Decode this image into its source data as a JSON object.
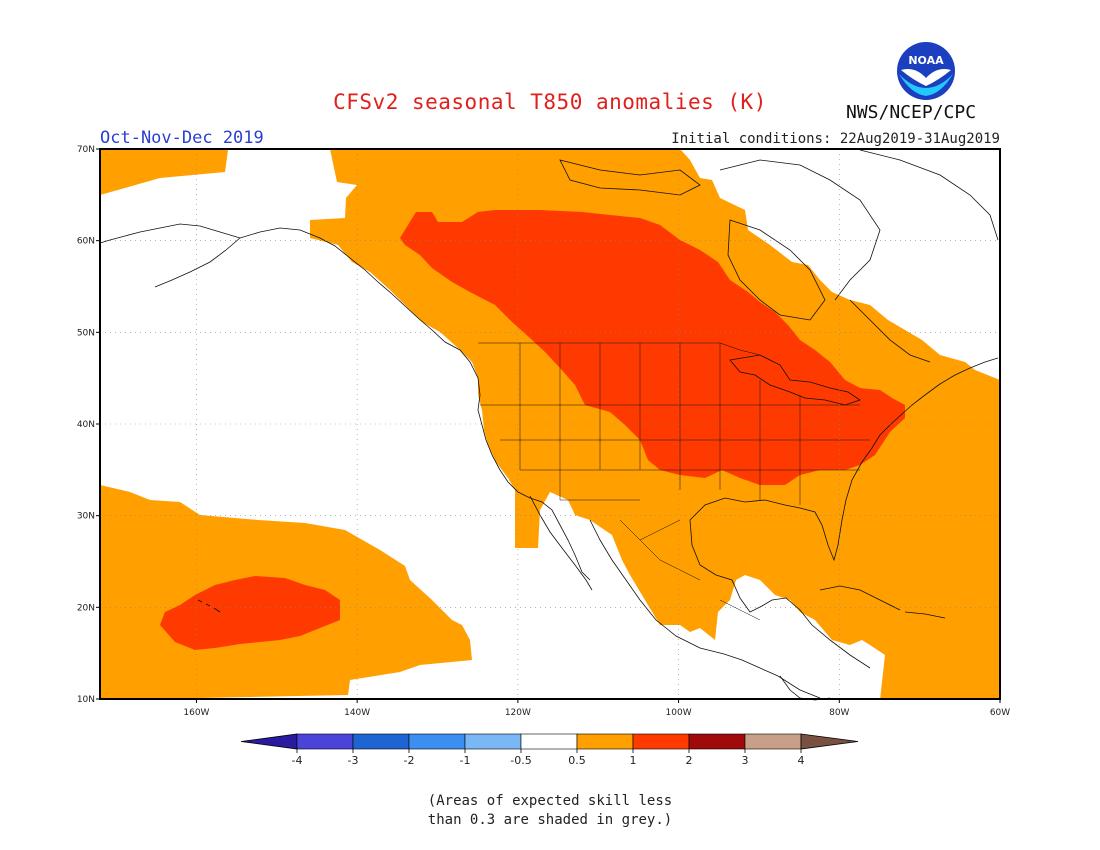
{
  "header": {
    "title": "CFSv2 seasonal T850 anomalies (K)",
    "period": "Oct-Nov-Dec 2019",
    "initial_conditions": "Initial conditions: 22Aug2019-31Aug2019",
    "agency": "NWS/NCEP/CPC",
    "logo_text": "NOAA"
  },
  "map": {
    "lon_range": [
      -172,
      -60
    ],
    "lat_range": [
      10,
      70
    ],
    "lon_ticks": [
      {
        "value": -160,
        "label": "160W"
      },
      {
        "value": -140,
        "label": "140W"
      },
      {
        "value": -120,
        "label": "120W"
      },
      {
        "value": -100,
        "label": "100W"
      },
      {
        "value": -80,
        "label": "80W"
      },
      {
        "value": -60,
        "label": "60W"
      }
    ],
    "lat_ticks": [
      {
        "value": 10,
        "label": "10N"
      },
      {
        "value": 20,
        "label": "20N"
      },
      {
        "value": 30,
        "label": "30N"
      },
      {
        "value": 40,
        "label": "40N"
      },
      {
        "value": 50,
        "label": "50N"
      },
      {
        "value": 60,
        "label": "60N"
      },
      {
        "value": 70,
        "label": "70N"
      }
    ],
    "colors": {
      "anomaly_0_5_to_1": "#ff9f00",
      "anomaly_1_to_2": "#ff3a00",
      "land_outline": "#111111",
      "grid": "#888888"
    }
  },
  "colorbar": {
    "labels": [
      "-4",
      "-3",
      "-2",
      "-1",
      "-0.5",
      "0.5",
      "1",
      "2",
      "3",
      "4"
    ],
    "colors": [
      "#2a1aa0",
      "#4a44d8",
      "#1e64d2",
      "#3c8ef0",
      "#7ab8f5",
      "#ffffff",
      "#ff9f00",
      "#ff3a00",
      "#a00a0a",
      "#c8a08a",
      "#7a5040"
    ]
  },
  "note": {
    "line1": "(Areas of expected skill less",
    "line2": "than 0.3 are shaded in grey.)"
  }
}
